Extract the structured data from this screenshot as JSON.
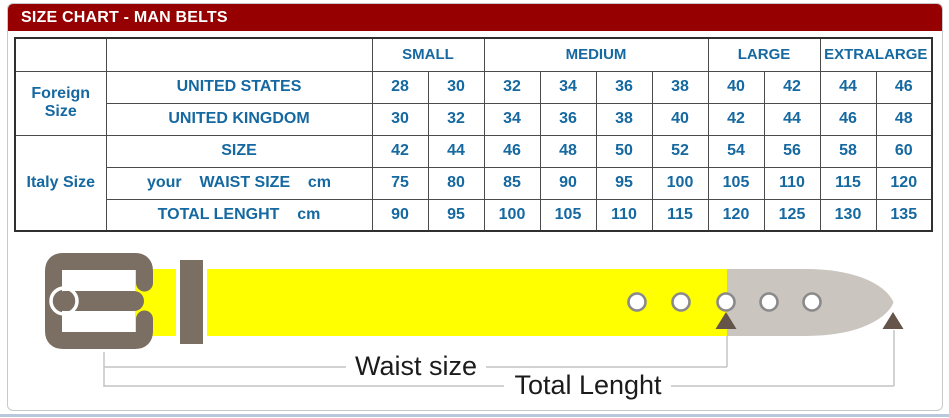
{
  "title": "SIZE CHART - MAN BELTS",
  "table": {
    "size_groups": [
      {
        "label": "SMALL",
        "span": 2,
        "shaded": true
      },
      {
        "label": "MEDIUM",
        "span": 4,
        "shaded": false
      },
      {
        "label": "LARGE",
        "span": 2,
        "shaded": true
      },
      {
        "label": "EXTRALARGE",
        "span": 2,
        "shaded": false
      }
    ],
    "row_groups": [
      {
        "label": "Foreign Size",
        "rowspan": 2
      },
      {
        "label": "Italy Size",
        "rowspan": 3
      }
    ],
    "rows": [
      {
        "group": 0,
        "label": "UNITED STATES",
        "highlight": false,
        "values": [
          "28",
          "30",
          "32",
          "34",
          "36",
          "38",
          "40",
          "42",
          "44",
          "46"
        ]
      },
      {
        "group": 0,
        "label": "UNITED KINGDOM",
        "highlight": false,
        "values": [
          "30",
          "32",
          "34",
          "36",
          "38",
          "40",
          "42",
          "44",
          "46",
          "48"
        ]
      },
      {
        "group": 1,
        "label": "SIZE",
        "highlight": false,
        "values": [
          "42",
          "44",
          "46",
          "48",
          "50",
          "52",
          "54",
          "56",
          "58",
          "60"
        ]
      },
      {
        "group": 1,
        "label": "your    WAIST SIZE    cm",
        "highlight": true,
        "values": [
          "75",
          "80",
          "85",
          "90",
          "95",
          "100",
          "105",
          "110",
          "115",
          "120"
        ]
      },
      {
        "group": 1,
        "label": "TOTAL LENGHT    cm",
        "highlight": false,
        "values": [
          "90",
          "95",
          "100",
          "105",
          "110",
          "115",
          "120",
          "125",
          "130",
          "135"
        ]
      }
    ]
  },
  "diagram": {
    "waist_label": "Waist size",
    "total_label": "Total Lenght"
  },
  "colors": {
    "header_red": "#970000",
    "text_blue": "#1568a0",
    "cell_gray": "#e9e9e9",
    "highlight_yellow": "#ffff00",
    "buckle_taupe": "#7b6e63",
    "belt_tip_gray": "#cbc5c0",
    "arrow_brown": "#65544a",
    "leader_line_gray": "#c4c4c4"
  },
  "chart_data": {
    "type": "table",
    "title": "SIZE CHART - MAN BELTS",
    "column_groups": [
      "SMALL",
      "SMALL",
      "MEDIUM",
      "MEDIUM",
      "MEDIUM",
      "MEDIUM",
      "LARGE",
      "LARGE",
      "EXTRALARGE",
      "EXTRALARGE"
    ],
    "series": [
      {
        "name": "UNITED STATES",
        "values": [
          28,
          30,
          32,
          34,
          36,
          38,
          40,
          42,
          44,
          46
        ]
      },
      {
        "name": "UNITED KINGDOM",
        "values": [
          30,
          32,
          34,
          36,
          38,
          40,
          42,
          44,
          46,
          48
        ]
      },
      {
        "name": "SIZE",
        "values": [
          42,
          44,
          46,
          48,
          50,
          52,
          54,
          56,
          58,
          60
        ]
      },
      {
        "name": "your WAIST SIZE cm",
        "values": [
          75,
          80,
          85,
          90,
          95,
          100,
          105,
          110,
          115,
          120
        ]
      },
      {
        "name": "TOTAL LENGHT cm",
        "values": [
          90,
          95,
          100,
          105,
          110,
          115,
          120,
          125,
          130,
          135
        ]
      }
    ]
  }
}
